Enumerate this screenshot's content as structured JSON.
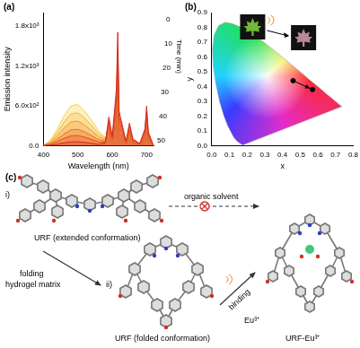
{
  "chart_data": [
    {
      "type": "line",
      "title": "(a)",
      "x_label": "Wavelength (nm)",
      "y_label": "Emission intensity",
      "z_label": "Time (min)",
      "x": [
        400,
        420,
        440,
        460,
        480,
        500,
        520,
        540,
        560,
        580,
        590,
        600,
        612,
        616,
        620,
        640,
        650,
        660,
        680,
        695,
        700,
        705,
        720
      ],
      "xlim": [
        400,
        720
      ],
      "xticks": [
        400,
        500,
        600,
        700
      ],
      "ylim": [
        0,
        2000
      ],
      "yticks": [
        {
          "value": 0,
          "label": "0.0"
        },
        {
          "value": 600,
          "label": "6.0x10²"
        },
        {
          "value": 1200,
          "label": "1.2x10³"
        },
        {
          "value": 1800,
          "label": "1.8x10³"
        }
      ],
      "grid": false,
      "series": [
        {
          "name": "0",
          "color": "#f2d43c",
          "values": [
            10,
            80,
            250,
            450,
            600,
            620,
            520,
            380,
            230,
            126,
            155,
            74,
            180,
            325,
            110,
            27,
            70,
            26,
            11,
            50,
            110,
            41,
            5
          ]
        },
        {
          "name": "10",
          "color": "#f4b53a",
          "values": [
            8,
            64,
            200,
            360,
            480,
            496,
            416,
            304,
            184,
            108,
            214,
            88,
            324,
            620,
            196,
            36,
            128,
            42,
            16,
            94,
            214,
            76,
            4
          ]
        },
        {
          "name": "20",
          "color": "#f39431",
          "values": [
            6,
            48,
            150,
            270,
            360,
            372,
            312,
            228,
            138,
            90,
            273,
            102,
            468,
            915,
            282,
            45,
            186,
            59,
            21,
            138,
            318,
            111,
            3
          ]
        },
        {
          "name": "30",
          "color": "#ee6e2a",
          "values": [
            4,
            32,
            100,
            180,
            240,
            248,
            208,
            152,
            92,
            72,
            332,
            116,
            612,
            1210,
            368,
            54,
            244,
            75,
            26,
            182,
            422,
            146,
            2
          ]
        },
        {
          "name": "40",
          "color": "#e44a24",
          "values": [
            3,
            20,
            63,
            113,
            150,
            155,
            130,
            95,
            58,
            59,
            383,
            129,
            733,
            1456,
            440,
            62,
            293,
            89,
            30,
            219,
            509,
            175,
            1
          ]
        },
        {
          "name": "50",
          "color": "#d42a1e",
          "values": [
            1,
            8,
            25,
            45,
            60,
            62,
            52,
            38,
            23,
            46,
            433,
            141,
            853,
            1703,
            512,
            70,
            341,
            103,
            35,
            256,
            596,
            205,
            1
          ]
        }
      ]
    },
    {
      "type": "scatter",
      "title": "(b)",
      "x_label": "x",
      "y_label": "y",
      "xlim": [
        0,
        0.8
      ],
      "xticks": [
        {
          "value": 0,
          "label": "0.0"
        },
        0.1,
        0.2,
        0.3,
        0.4,
        0.5,
        0.6,
        0.7,
        0.8
      ],
      "ylim": [
        0,
        0.9
      ],
      "yticks": [
        {
          "value": 0,
          "label": "0.0"
        },
        0.1,
        0.2,
        0.3,
        0.4,
        0.5,
        0.6,
        0.7,
        0.8,
        0.9
      ],
      "grid": false,
      "locus": {
        "x": [
          0.174,
          0.144,
          0.124,
          0.091,
          0.069,
          0.045,
          0.024,
          0.008,
          0.004,
          0.014,
          0.039,
          0.074,
          0.114,
          0.155,
          0.193,
          0.23,
          0.266,
          0.302,
          0.337,
          0.373,
          0.409,
          0.444,
          0.479,
          0.513,
          0.545,
          0.575,
          0.603,
          0.627,
          0.648,
          0.666,
          0.692,
          0.708,
          0.735
        ],
        "y": [
          0.005,
          0.03,
          0.058,
          0.133,
          0.201,
          0.295,
          0.413,
          0.538,
          0.655,
          0.75,
          0.812,
          0.834,
          0.826,
          0.806,
          0.782,
          0.754,
          0.724,
          0.692,
          0.659,
          0.625,
          0.59,
          0.555,
          0.52,
          0.487,
          0.454,
          0.424,
          0.397,
          0.373,
          0.351,
          0.334,
          0.308,
          0.292,
          0.265
        ]
      },
      "points": {
        "x": [
          0.46,
          0.57
        ],
        "y": [
          0.44,
          0.38
        ],
        "color": "#000000",
        "marker": "circle"
      }
    }
  ],
  "diagram": {
    "title": "(c)",
    "nodes": [
      {
        "tag": "i)",
        "label": "URF (extended conformation)"
      },
      {
        "tag": "ii)",
        "label": "URF (folded conformation)"
      },
      {
        "label": "URF-Eu³⁺"
      }
    ],
    "edges": [
      {
        "from": 0,
        "to": 2,
        "labels": [
          "organic solvent"
        ],
        "blocked": true
      },
      {
        "from": 0,
        "to": 1,
        "labels": [
          "folding",
          "hydrogel matrix"
        ]
      },
      {
        "from": 1,
        "to": 2,
        "labels": [
          "binding",
          "Eu³⁺"
        ]
      }
    ]
  }
}
